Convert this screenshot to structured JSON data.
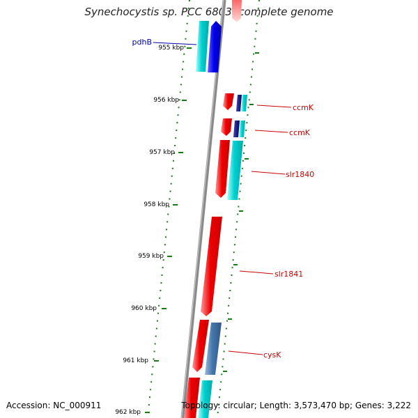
{
  "title": "Synechocystis sp. PCC 6803, complete genome",
  "footer": {
    "accession": "Accession: NC_000911",
    "info": "Topology: circular; Length: 3,573,470 bp; Genes: 3,222"
  },
  "colors": {
    "backbone": "#888888",
    "tick": "#1a7a1a",
    "forward_cds": "#ee0000",
    "reverse_cds_light": "#00cccc",
    "reverse_cds_blue": "#0000dd",
    "reverse_cds_steel": "#4477aa",
    "label_red": "#cc0000",
    "label_blue": "#0000aa"
  },
  "scale": {
    "ticks": [
      {
        "label": "955 kbp"
      },
      {
        "label": "956 kbp"
      },
      {
        "label": "957 kbp"
      },
      {
        "label": "958 kbp"
      },
      {
        "label": "959 kbp"
      },
      {
        "label": "960 kbp"
      },
      {
        "label": "961 kbp"
      },
      {
        "label": "962 kbp"
      }
    ]
  },
  "gene_labels": [
    {
      "name": "pdhB",
      "color": "blue"
    },
    {
      "name": "ccmK",
      "color": "red"
    },
    {
      "name": "ccmK",
      "color": "red"
    },
    {
      "name": "slr1840",
      "color": "red"
    },
    {
      "name": "slr1841",
      "color": "red"
    },
    {
      "name": "cysK",
      "color": "red"
    }
  ]
}
